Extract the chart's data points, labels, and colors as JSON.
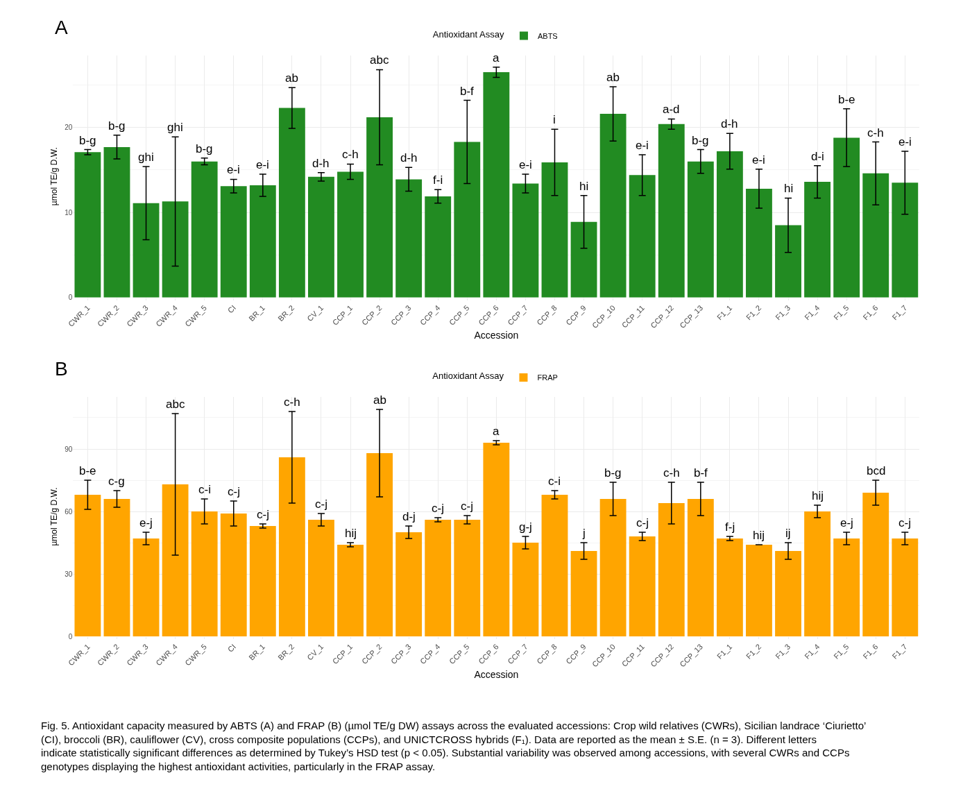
{
  "chart_data": [
    {
      "type": "bar",
      "title": "A",
      "xlabel": "Accession",
      "ylabel": "µmol TE/g D.W.",
      "legend_title": "Antioxidant Assay",
      "legend": "top",
      "grid": true,
      "categories": [
        "CWR_1",
        "CWR_2",
        "CWR_3",
        "CWR_4",
        "CWR_5",
        "CI",
        "BR_1",
        "BR_2",
        "CV_1",
        "CCP_1",
        "CCP_2",
        "CCP_3",
        "CCP_4",
        "CCP_5",
        "CCP_6",
        "CCP_7",
        "CCP_8",
        "CCP_9",
        "CCP_10",
        "CCP_11",
        "CCP_12",
        "CCP_13",
        "F1_1",
        "F1_2",
        "F1_3",
        "F1_4",
        "F1_5",
        "F1_6",
        "F1_7"
      ],
      "series": [
        {
          "name": "ABTS",
          "color": "#228b22",
          "values": [
            17.1,
            17.7,
            11.1,
            11.3,
            16.0,
            13.1,
            13.2,
            22.3,
            14.2,
            14.8,
            21.2,
            13.9,
            11.9,
            18.3,
            26.5,
            13.4,
            15.9,
            8.9,
            21.6,
            14.4,
            20.4,
            16.0,
            17.2,
            12.8,
            8.5,
            13.6,
            18.8,
            14.6,
            13.5
          ],
          "errors": [
            0.3,
            1.4,
            4.3,
            7.6,
            0.4,
            0.8,
            1.3,
            2.4,
            0.5,
            0.9,
            5.6,
            1.4,
            0.8,
            4.9,
            0.6,
            1.1,
            3.9,
            3.1,
            3.2,
            2.4,
            0.6,
            1.4,
            2.1,
            2.3,
            3.2,
            1.9,
            3.4,
            3.7,
            3.7
          ]
        }
      ],
      "annotations": [
        {
          "text": "b-g",
          "x": "CWR_1",
          "y": 17.4
        },
        {
          "text": "b-g",
          "x": "CWR_2",
          "y": 19.1
        },
        {
          "text": "ghi",
          "x": "CWR_3",
          "y": 15.4
        },
        {
          "text": "ghi",
          "x": "CWR_4",
          "y": 18.9
        },
        {
          "text": "b-g",
          "x": "CWR_5",
          "y": 16.4
        },
        {
          "text": "e-i",
          "x": "CI",
          "y": 13.9
        },
        {
          "text": "e-i",
          "x": "BR_1",
          "y": 14.5
        },
        {
          "text": "ab",
          "x": "BR_2",
          "y": 24.7
        },
        {
          "text": "d-h",
          "x": "CV_1",
          "y": 14.7
        },
        {
          "text": "c-h",
          "x": "CCP_1",
          "y": 15.7
        },
        {
          "text": "abc",
          "x": "CCP_2",
          "y": 26.8
        },
        {
          "text": "d-h",
          "x": "CCP_3",
          "y": 15.3
        },
        {
          "text": "f-i",
          "x": "CCP_4",
          "y": 12.7
        },
        {
          "text": "b-f",
          "x": "CCP_5",
          "y": 23.2
        },
        {
          "text": "a",
          "x": "CCP_6",
          "y": 27.1
        },
        {
          "text": "e-i",
          "x": "CCP_7",
          "y": 14.5
        },
        {
          "text": "i",
          "x": "CCP_8",
          "y": 19.8
        },
        {
          "text": "hi",
          "x": "CCP_9",
          "y": 12.0
        },
        {
          "text": "ab",
          "x": "CCP_10",
          "y": 24.8
        },
        {
          "text": "e-i",
          "x": "CCP_11",
          "y": 16.8
        },
        {
          "text": "a-d",
          "x": "CCP_12",
          "y": 21.0
        },
        {
          "text": "b-g",
          "x": "CCP_13",
          "y": 17.4
        },
        {
          "text": "d-h",
          "x": "F1_1",
          "y": 19.3
        },
        {
          "text": "e-i",
          "x": "F1_2",
          "y": 15.1
        },
        {
          "text": "hi",
          "x": "F1_3",
          "y": 11.7
        },
        {
          "text": "d-i",
          "x": "F1_4",
          "y": 15.5
        },
        {
          "text": "b-e",
          "x": "F1_5",
          "y": 22.2
        },
        {
          "text": "c-h",
          "x": "F1_6",
          "y": 18.3
        },
        {
          "text": "e-i",
          "x": "F1_7",
          "y": 17.2
        }
      ],
      "ylim": [
        0,
        28.5
      ],
      "yticks": [
        0,
        10,
        20
      ]
    },
    {
      "type": "bar",
      "title": "B",
      "xlabel": "Accession",
      "ylabel": "µmol TE/g D.W.",
      "legend_title": "Antioxidant Assay",
      "legend": "top",
      "grid": true,
      "categories": [
        "CWR_1",
        "CWR_2",
        "CWR_3",
        "CWR_4",
        "CWR_5",
        "CI",
        "BR_1",
        "BR_2",
        "CV_1",
        "CCP_1",
        "CCP_2",
        "CCP_3",
        "CCP_4",
        "CCP_5",
        "CCP_6",
        "CCP_7",
        "CCP_8",
        "CCP_9",
        "CCP_10",
        "CCP_11",
        "CCP_12",
        "CCP_13",
        "F1_1",
        "F1_2",
        "F1_3",
        "F1_4",
        "F1_5",
        "F1_6",
        "F1_7"
      ],
      "series": [
        {
          "name": "FRAP",
          "color": "#ffa500",
          "values": [
            68,
            66,
            47,
            73,
            60,
            59,
            53,
            86,
            56,
            44,
            88,
            50,
            56,
            56,
            93,
            45,
            68,
            41,
            66,
            48,
            64,
            66,
            47,
            44,
            41,
            60,
            47,
            69,
            47
          ],
          "errors": [
            7,
            4,
            3,
            34,
            6,
            6,
            1,
            22,
            3,
            1,
            21,
            3,
            1,
            2,
            1,
            3,
            2,
            4,
            8,
            2,
            10,
            8,
            1,
            0,
            4,
            3,
            3,
            6,
            3
          ]
        }
      ],
      "annotations": [
        {
          "text": "b-e",
          "x": "CWR_1",
          "y": 75
        },
        {
          "text": "c-g",
          "x": "CWR_2",
          "y": 70
        },
        {
          "text": "e-j",
          "x": "CWR_3",
          "y": 50
        },
        {
          "text": "abc",
          "x": "CWR_4",
          "y": 107
        },
        {
          "text": "c-i",
          "x": "CWR_5",
          "y": 66
        },
        {
          "text": "c-j",
          "x": "CI",
          "y": 65
        },
        {
          "text": "c-j",
          "x": "BR_1",
          "y": 54
        },
        {
          "text": "c-h",
          "x": "BR_2",
          "y": 108
        },
        {
          "text": "c-j",
          "x": "CV_1",
          "y": 59
        },
        {
          "text": "hij",
          "x": "CCP_1",
          "y": 45
        },
        {
          "text": "ab",
          "x": "CCP_2",
          "y": 109
        },
        {
          "text": "d-j",
          "x": "CCP_3",
          "y": 53
        },
        {
          "text": "c-j",
          "x": "CCP_4",
          "y": 57
        },
        {
          "text": "c-j",
          "x": "CCP_5",
          "y": 58
        },
        {
          "text": "a",
          "x": "CCP_6",
          "y": 94
        },
        {
          "text": "g-j",
          "x": "CCP_7",
          "y": 48
        },
        {
          "text": "c-i",
          "x": "CCP_8",
          "y": 70
        },
        {
          "text": "j",
          "x": "CCP_9",
          "y": 45
        },
        {
          "text": "b-g",
          "x": "CCP_10",
          "y": 74
        },
        {
          "text": "c-j",
          "x": "CCP_11",
          "y": 50
        },
        {
          "text": "c-h",
          "x": "CCP_12",
          "y": 74
        },
        {
          "text": "b-f",
          "x": "CCP_13",
          "y": 74
        },
        {
          "text": "f-j",
          "x": "F1_1",
          "y": 48
        },
        {
          "text": "hij",
          "x": "F1_2",
          "y": 44
        },
        {
          "text": "ij",
          "x": "F1_3",
          "y": 45
        },
        {
          "text": "hij",
          "x": "F1_4",
          "y": 63
        },
        {
          "text": "e-j",
          "x": "F1_5",
          "y": 50
        },
        {
          "text": "bcd",
          "x": "F1_6",
          "y": 75
        },
        {
          "text": "c-j",
          "x": "F1_7",
          "y": 50
        },
        "Fig. 5. Antioxidant capacity measured by ABTS (A) and FRAP (B) (µmol TE/g DW) assays across the evaluated accessions: Crop wild relatives (CWRs), Sicilian landrace ‘Ciurietto’ (CI), broccoli (BR), cauliflower (CV), cross composite populations (CCPs), and UNICTCROSS hybrids (F₁). Data are reported as the mean ± S.E. (n = 3). Different letters indicate statistically significant differences as determined by Tukey’s HSD test (p < 0.05). Substantial variability was observed among accessions, with several CWRs and CCPs genotypes displaying the highest antioxidant activities, particularly in the FRAP assay."
      ],
      "ylim": [
        0,
        115
      ],
      "yticks": [
        0,
        30,
        60,
        90
      ]
    }
  ]
}
